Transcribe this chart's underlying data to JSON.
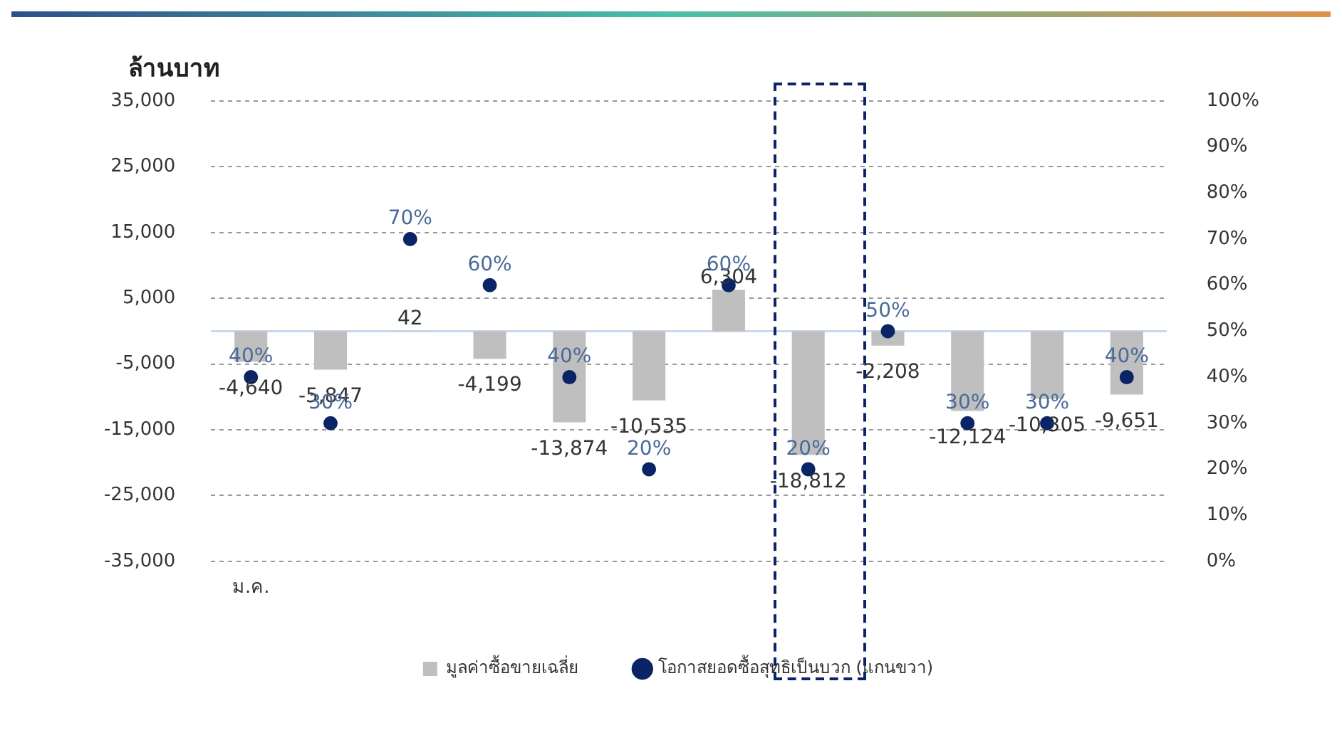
{
  "chart_data": {
    "type": "bar",
    "ylabel": "ล้านบาท",
    "categories": [
      "ม.ค.",
      null,
      null,
      null,
      null,
      null,
      null,
      null,
      null,
      null,
      null,
      null
    ],
    "series": [
      {
        "name": "มูลค่าซื้อขายเฉลี่ย",
        "color": "#bfbfbf",
        "values": [
          -4640,
          -5847,
          42,
          -4199,
          -13874,
          -10535,
          6304,
          -18812,
          -2208,
          -12124,
          -10305,
          -9651
        ],
        "value_labels": [
          "-4,640",
          "-5,847",
          "42",
          "-4,199",
          "-13,874",
          "-10,535",
          "6,304",
          "-18,812",
          "-2,208",
          "-12,124",
          "-10,305",
          "-9,651"
        ]
      },
      {
        "name": "โอกาสยอดซื้อสุทธิเป็นบวก (แกนขวา)",
        "type": "scatter",
        "axis": "y2",
        "color": "#0b2467",
        "values": [
          40,
          30,
          70,
          60,
          40,
          20,
          60,
          20,
          50,
          30,
          30,
          40
        ],
        "value_labels": [
          "40%",
          "30%",
          "70%",
          "60%",
          "40%",
          "20%",
          "60%",
          "20%",
          "50%",
          "30%",
          "30%",
          "40%"
        ]
      }
    ],
    "ylim": [
      -35000,
      35000
    ],
    "yticks": [
      {
        "value": -35000,
        "label": "-35,000"
      },
      {
        "value": -25000,
        "label": "-25,000"
      },
      {
        "value": -15000,
        "label": "-15,000"
      },
      {
        "value": -5000,
        "label": "-5,000"
      },
      {
        "value": 5000,
        "label": "5,000"
      },
      {
        "value": 15000,
        "label": "15,000"
      },
      {
        "value": 25000,
        "label": "25,000"
      },
      {
        "value": 35000,
        "label": "35,000"
      }
    ],
    "y2lim": [
      0,
      100
    ],
    "y2ticks": [
      {
        "value": 0,
        "label": "0%"
      },
      {
        "value": 10,
        "label": "10%"
      },
      {
        "value": 20,
        "label": "20%"
      },
      {
        "value": 30,
        "label": "30%"
      },
      {
        "value": 40,
        "label": "40%"
      },
      {
        "value": 50,
        "label": "50%"
      },
      {
        "value": 60,
        "label": "60%"
      },
      {
        "value": 70,
        "label": "70%"
      },
      {
        "value": 80,
        "label": "80%"
      },
      {
        "value": 90,
        "label": "90%"
      },
      {
        "value": 100,
        "label": "100%"
      }
    ],
    "ref_lines": [
      {
        "axis": "y",
        "value": 0,
        "color": "#c9d6ee",
        "line_style": "solid"
      }
    ],
    "grid": "y",
    "legend": "bottom",
    "marker": "circle"
  }
}
